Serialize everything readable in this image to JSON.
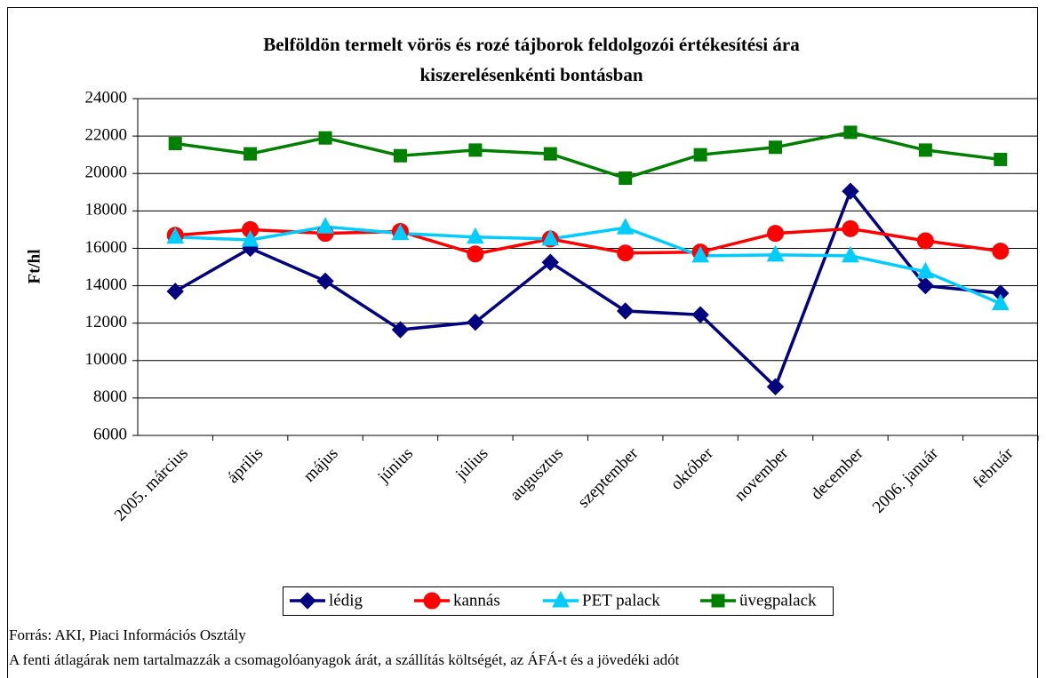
{
  "chart_data": {
    "type": "line",
    "title": [
      "Belföldön termelt vörös és rozé tájborok feldolgozói értékesítési ára",
      "kiszerelésenkénti bontásban"
    ],
    "y_label": "Ft/hl",
    "categories": [
      "2005. március",
      "április",
      "május",
      "június",
      "július",
      "augusztus",
      "szeptember",
      "október",
      "november",
      "december",
      "2006. január",
      "február"
    ],
    "series": [
      {
        "name": "lédig",
        "color": "#000080",
        "marker": "diamond",
        "values": [
          13700,
          16000,
          14250,
          11650,
          12050,
          15250,
          12650,
          12450,
          8600,
          19050,
          14000,
          13600
        ]
      },
      {
        "name": "kannás",
        "color": "#ff0000",
        "marker": "circle",
        "values": [
          16700,
          17000,
          16800,
          16900,
          15700,
          16500,
          15750,
          15800,
          16800,
          17050,
          16400,
          15850
        ]
      },
      {
        "name": "PET palack",
        "color": "#00ccff",
        "marker": "triangle",
        "values": [
          16600,
          16450,
          17150,
          16800,
          16600,
          16500,
          17100,
          15600,
          15650,
          15600,
          14750,
          13050
        ]
      },
      {
        "name": "üvegpalack",
        "color": "#008000",
        "marker": "square",
        "values": [
          21600,
          21050,
          21900,
          20950,
          21250,
          21050,
          19750,
          21000,
          21400,
          22200,
          21250,
          20750
        ]
      }
    ],
    "ylim": [
      6000,
      24000
    ],
    "yticks": [
      6000,
      8000,
      10000,
      12000,
      14000,
      16000,
      18000,
      20000,
      22000,
      24000
    ],
    "grid": true,
    "legend": "bottom",
    "notes": [
      "Forrás: AKI, Piaci Információs Osztály",
      "A fenti átlagárak nem tartalmazzák a csomagolóanyagok árát, a szállítás költségét, az ÁFÁ-t és a jövedéki adót"
    ]
  }
}
